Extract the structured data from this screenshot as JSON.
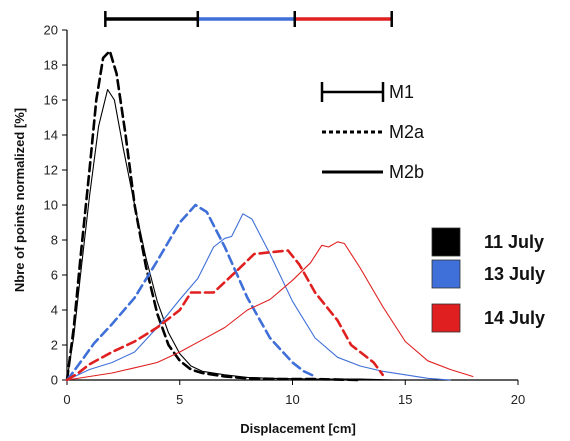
{
  "chart_data": {
    "type": "line",
    "xlabel": "Displacement [cm]",
    "ylabel": "Nbre of points normalized [%]",
    "xlim": [
      0,
      20
    ],
    "ylim": [
      0,
      20
    ],
    "x_ticks": [
      "0",
      "5",
      "10",
      "15",
      "20"
    ],
    "y_ticks": [
      "0",
      "2",
      "4",
      "6",
      "8",
      "10",
      "12",
      "14",
      "16",
      "18",
      "20"
    ],
    "grid": false,
    "colors": {
      "11 July": "#000000",
      "13 July": "#3f6fd8",
      "14 July": "#e02020"
    },
    "range_bars": [
      {
        "date": "11 July",
        "x": [
          1.7,
          5.8
        ]
      },
      {
        "date": "13 July",
        "x": [
          5.8,
          10.1
        ]
      },
      {
        "date": "14 July",
        "x": [
          10.1,
          14.4
        ]
      }
    ],
    "style_legend": [
      {
        "label": "M1",
        "style": "range-bar"
      },
      {
        "label": "M2a",
        "style": "dashed"
      },
      {
        "label": "M2b",
        "style": "solid"
      }
    ],
    "date_legend": [
      {
        "label": "11 July",
        "color": "#000000"
      },
      {
        "label": "13 July",
        "color": "#3f6fd8"
      },
      {
        "label": "14 July",
        "color": "#e02020"
      }
    ],
    "series": [
      {
        "date": "11 July",
        "method": "M2a",
        "points": [
          [
            0,
            0
          ],
          [
            0.3,
            3
          ],
          [
            0.6,
            7
          ],
          [
            1.0,
            12
          ],
          [
            1.3,
            16
          ],
          [
            1.6,
            18.4
          ],
          [
            1.9,
            18.8
          ],
          [
            2.2,
            17.5
          ],
          [
            2.6,
            14
          ],
          [
            3.0,
            10
          ],
          [
            3.5,
            6.5
          ],
          [
            4.0,
            3.8
          ],
          [
            4.5,
            2
          ],
          [
            5.0,
            1.1
          ],
          [
            5.5,
            0.6
          ],
          [
            6.0,
            0.4
          ],
          [
            7.0,
            0.2
          ],
          [
            8.0,
            0.1
          ],
          [
            9.5,
            0.05
          ],
          [
            11,
            0.05
          ],
          [
            13,
            0
          ]
        ]
      },
      {
        "date": "11 July",
        "method": "M2b",
        "points": [
          [
            0,
            0
          ],
          [
            0.3,
            2.5
          ],
          [
            0.6,
            6
          ],
          [
            1.0,
            10.5
          ],
          [
            1.4,
            14.5
          ],
          [
            1.8,
            16.6
          ],
          [
            2.1,
            16
          ],
          [
            2.5,
            13.2
          ],
          [
            3.0,
            10
          ],
          [
            3.5,
            7
          ],
          [
            4.0,
            4.5
          ],
          [
            4.5,
            2.7
          ],
          [
            5.0,
            1.5
          ],
          [
            5.5,
            0.8
          ],
          [
            6.0,
            0.5
          ],
          [
            7.0,
            0.3
          ],
          [
            8.0,
            0.15
          ],
          [
            9.0,
            0.1
          ],
          [
            11,
            0.05
          ],
          [
            13,
            0.05
          ],
          [
            14.5,
            0
          ]
        ]
      },
      {
        "date": "13 July",
        "method": "M2a",
        "points": [
          [
            0,
            0
          ],
          [
            0.3,
            0.5
          ],
          [
            0.7,
            1.2
          ],
          [
            1.2,
            2.1
          ],
          [
            2.0,
            3.2
          ],
          [
            3.0,
            4.7
          ],
          [
            4.0,
            6.8
          ],
          [
            5.0,
            9.0
          ],
          [
            5.7,
            10.0
          ],
          [
            6.2,
            9.6
          ],
          [
            7.0,
            7.6
          ],
          [
            8.0,
            4.7
          ],
          [
            9.0,
            2.4
          ],
          [
            10.0,
            1.0
          ],
          [
            10.5,
            0.5
          ],
          [
            11.0,
            0.2
          ]
        ]
      },
      {
        "date": "13 July",
        "method": "M2b",
        "points": [
          [
            0,
            0
          ],
          [
            0.5,
            0.3
          ],
          [
            1.0,
            0.6
          ],
          [
            2.0,
            1.0
          ],
          [
            3.0,
            1.6
          ],
          [
            4.0,
            3.0
          ],
          [
            5.0,
            4.6
          ],
          [
            5.8,
            5.8
          ],
          [
            6.5,
            7.6
          ],
          [
            7.0,
            8.1
          ],
          [
            7.3,
            8.2
          ],
          [
            7.8,
            9.5
          ],
          [
            8.2,
            9.2
          ],
          [
            9.0,
            7.2
          ],
          [
            10.0,
            4.5
          ],
          [
            11.0,
            2.4
          ],
          [
            12.0,
            1.3
          ],
          [
            13.0,
            0.8
          ],
          [
            14.0,
            0.5
          ],
          [
            15.0,
            0.3
          ],
          [
            16.0,
            0.1
          ],
          [
            17.0,
            0
          ]
        ]
      },
      {
        "date": "14 July",
        "method": "M2a",
        "points": [
          [
            0,
            0
          ],
          [
            0.5,
            0.4
          ],
          [
            1.0,
            0.9
          ],
          [
            2.0,
            1.6
          ],
          [
            3.0,
            2.2
          ],
          [
            4.0,
            3.0
          ],
          [
            5.0,
            4.0
          ],
          [
            5.5,
            5.0
          ],
          [
            6.5,
            5.0
          ],
          [
            7.5,
            6.2
          ],
          [
            8.3,
            7.2
          ],
          [
            9.0,
            7.3
          ],
          [
            9.8,
            7.4
          ],
          [
            10.3,
            6.6
          ],
          [
            11.0,
            5.0
          ],
          [
            12.0,
            3.4
          ],
          [
            12.6,
            2.0
          ],
          [
            13.0,
            1.6
          ],
          [
            13.6,
            1.0
          ],
          [
            14.0,
            0.3
          ]
        ]
      },
      {
        "date": "14 July",
        "method": "M2b",
        "points": [
          [
            0,
            0
          ],
          [
            1.0,
            0.2
          ],
          [
            2.0,
            0.4
          ],
          [
            3.0,
            0.7
          ],
          [
            4.0,
            1.0
          ],
          [
            5.0,
            1.6
          ],
          [
            6.0,
            2.3
          ],
          [
            7.0,
            3.0
          ],
          [
            8.0,
            4.0
          ],
          [
            9.0,
            4.6
          ],
          [
            10.0,
            5.7
          ],
          [
            10.8,
            6.7
          ],
          [
            11.3,
            7.7
          ],
          [
            11.6,
            7.6
          ],
          [
            12.0,
            7.9
          ],
          [
            12.3,
            7.8
          ],
          [
            13.0,
            6.4
          ],
          [
            14.0,
            4.2
          ],
          [
            15.0,
            2.2
          ],
          [
            16.0,
            1.1
          ],
          [
            17.0,
            0.6
          ],
          [
            18.0,
            0.2
          ]
        ]
      }
    ]
  }
}
